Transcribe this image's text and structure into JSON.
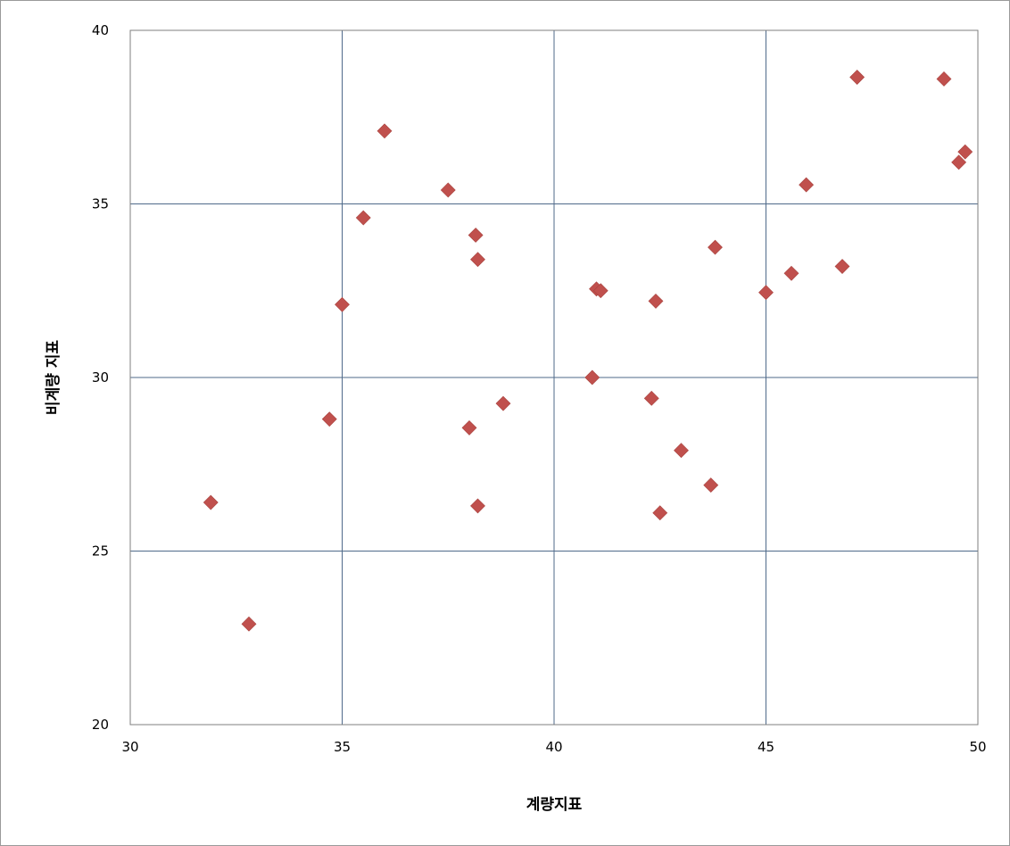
{
  "chart_data": {
    "type": "scatter",
    "title": "",
    "xlabel": "계량지표",
    "ylabel": "비계량 지표",
    "xlim": [
      30,
      50
    ],
    "ylim": [
      20,
      40
    ],
    "x_ticks": [
      30,
      35,
      40,
      45,
      50
    ],
    "y_ticks": [
      20,
      25,
      30,
      35,
      40
    ],
    "grid": true,
    "marker": "diamond",
    "marker_color": "#C0504D",
    "grid_color": "#4F6A8A",
    "series": [
      {
        "points": [
          [
            31.9,
            26.4
          ],
          [
            32.8,
            22.9
          ],
          [
            34.7,
            28.8
          ],
          [
            35.0,
            32.1
          ],
          [
            35.5,
            34.6
          ],
          [
            36.0,
            37.1
          ],
          [
            37.5,
            35.4
          ],
          [
            38.0,
            28.55
          ],
          [
            38.15,
            34.1
          ],
          [
            38.2,
            26.3
          ],
          [
            38.2,
            33.4
          ],
          [
            38.8,
            29.25
          ],
          [
            40.9,
            30.0
          ],
          [
            41.0,
            32.55
          ],
          [
            41.1,
            32.5
          ],
          [
            42.3,
            29.4
          ],
          [
            42.4,
            32.2
          ],
          [
            42.5,
            26.1
          ],
          [
            43.0,
            27.9
          ],
          [
            43.7,
            26.9
          ],
          [
            43.8,
            33.75
          ],
          [
            45.0,
            32.45
          ],
          [
            45.6,
            33.0
          ],
          [
            45.95,
            35.55
          ],
          [
            46.8,
            33.2
          ],
          [
            47.15,
            38.65
          ],
          [
            49.2,
            38.6
          ],
          [
            49.55,
            36.2
          ],
          [
            49.7,
            36.5
          ]
        ]
      }
    ]
  }
}
